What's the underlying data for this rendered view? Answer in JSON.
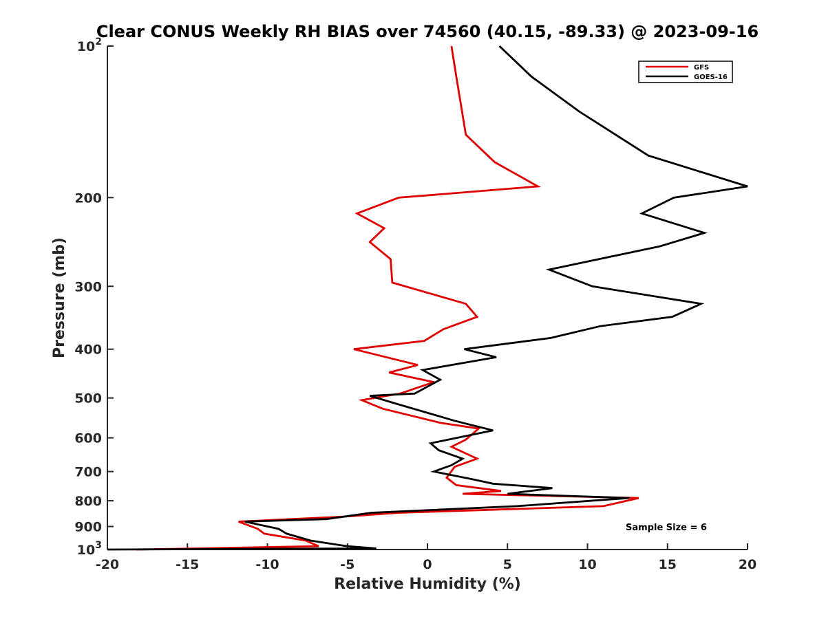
{
  "chart_data": {
    "type": "line",
    "title": "Clear CONUS Weekly RH BIAS over 74560 (40.15, -89.33) @ 2023-09-16",
    "xlabel": "Relative Humidity (%)",
    "ylabel": "Pressure (mb)",
    "xlim": [
      -20,
      20
    ],
    "ylim": [
      100,
      1000
    ],
    "y_scale": "log",
    "y_reversed": true,
    "grid": false,
    "legend_position": "top-right",
    "x_ticks": [
      -20,
      -15,
      -10,
      -5,
      0,
      5,
      10,
      15,
      20
    ],
    "x_tick_labels": [
      "-20",
      "-15",
      "-10",
      "-5",
      "0",
      "5",
      "10",
      "15",
      "20"
    ],
    "y_ticks": [
      200,
      300,
      400,
      500,
      600,
      700,
      800,
      900
    ],
    "y_tick_labels": [
      "200",
      "300",
      "400",
      "500",
      "600",
      "700",
      "800",
      "900"
    ],
    "y_power_ticks": [
      {
        "value": 100,
        "base": "10",
        "exp": "2"
      },
      {
        "value": 1000,
        "base": "10",
        "exp": "3"
      }
    ],
    "annotation": "Sample Size = 6",
    "series": [
      {
        "name": "GFS",
        "color": "#e00000",
        "points": [
          [
            1.5,
            100
          ],
          [
            1.8,
            115
          ],
          [
            2.4,
            150
          ],
          [
            4.2,
            170
          ],
          [
            6.9,
            190
          ],
          [
            -1.8,
            200
          ],
          [
            -4.4,
            215
          ],
          [
            -2.7,
            230
          ],
          [
            -3.6,
            245
          ],
          [
            -2.3,
            265
          ],
          [
            -2.2,
            295
          ],
          [
            2.4,
            325
          ],
          [
            3.1,
            345
          ],
          [
            1.0,
            365
          ],
          [
            -0.2,
            385
          ],
          [
            -4.6,
            400
          ],
          [
            -0.6,
            430
          ],
          [
            -2.4,
            445
          ],
          [
            0.4,
            465
          ],
          [
            -1.7,
            490
          ],
          [
            -4.1,
            505
          ],
          [
            -2.8,
            525
          ],
          [
            0.8,
            560
          ],
          [
            3.2,
            575
          ],
          [
            2.4,
            605
          ],
          [
            1.5,
            625
          ],
          [
            3.1,
            660
          ],
          [
            1.7,
            685
          ],
          [
            1.2,
            720
          ],
          [
            1.8,
            745
          ],
          [
            4.6,
            765
          ],
          [
            2.2,
            775
          ],
          [
            13.2,
            790
          ],
          [
            11.0,
            820
          ],
          [
            3.3,
            835
          ],
          [
            -1.8,
            845
          ],
          [
            -5.2,
            860
          ],
          [
            -11.8,
            880
          ],
          [
            -10.6,
            910
          ],
          [
            -10.2,
            930
          ],
          [
            -7.6,
            960
          ],
          [
            -6.8,
            985
          ],
          [
            -18.2,
            1000
          ]
        ]
      },
      {
        "name": "GOES-16",
        "color": "#000000",
        "points": [
          [
            4.5,
            100
          ],
          [
            6.5,
            115
          ],
          [
            9.5,
            135
          ],
          [
            13.8,
            165
          ],
          [
            20.0,
            190
          ],
          [
            15.4,
            200
          ],
          [
            13.4,
            215
          ],
          [
            17.3,
            235
          ],
          [
            14.5,
            250
          ],
          [
            7.6,
            278
          ],
          [
            10.3,
            300
          ],
          [
            17.1,
            325
          ],
          [
            15.3,
            345
          ],
          [
            10.8,
            360
          ],
          [
            7.7,
            380
          ],
          [
            2.3,
            400
          ],
          [
            4.3,
            415
          ],
          [
            -0.3,
            440
          ],
          [
            0.8,
            460
          ],
          [
            -0.8,
            490
          ],
          [
            -3.6,
            495
          ],
          [
            -1.8,
            515
          ],
          [
            1.7,
            555
          ],
          [
            4.1,
            580
          ],
          [
            0.2,
            615
          ],
          [
            0.7,
            635
          ],
          [
            2.2,
            660
          ],
          [
            1.5,
            680
          ],
          [
            0.4,
            700
          ],
          [
            2.8,
            725
          ],
          [
            4.1,
            740
          ],
          [
            7.8,
            755
          ],
          [
            5.0,
            775
          ],
          [
            12.6,
            790
          ],
          [
            5.6,
            820
          ],
          [
            -3.5,
            845
          ],
          [
            -6.3,
            870
          ],
          [
            -11.4,
            880
          ],
          [
            -9.3,
            910
          ],
          [
            -8.8,
            930
          ],
          [
            -7.3,
            960
          ],
          [
            -5.0,
            985
          ],
          [
            -3.2,
            995
          ],
          [
            -20.0,
            1000
          ]
        ]
      }
    ]
  }
}
